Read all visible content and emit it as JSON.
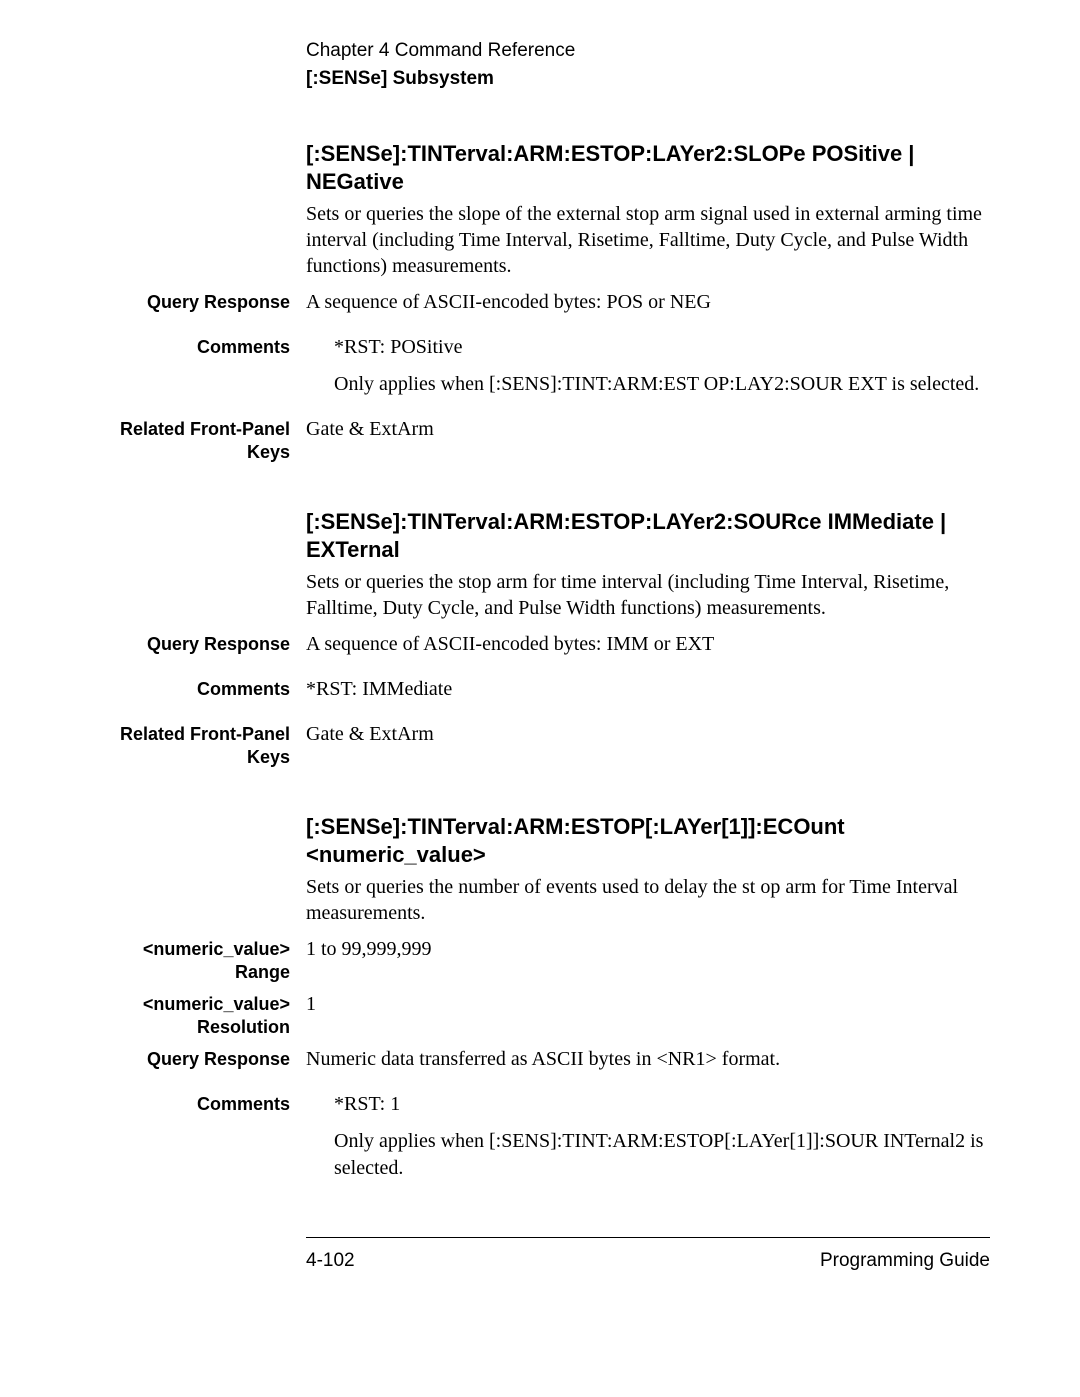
{
  "header": {
    "chapter": "Chapter 4  Command Reference",
    "subsystem": "[:SENSe] Subsystem"
  },
  "sections": [
    {
      "title": "[:SENSe]:TINTerval:ARM:ESTOP:LAYer2:SLOPe  POSitive | NEGative",
      "desc": "Sets or queries the slope of the external stop arm signal used in external arming time interval (including Time Interval, Risetime, Falltime, Duty Cycle, and Pulse Width functions) measurements.",
      "rows": [
        {
          "label": "Query Response",
          "content": [
            {
              "text": "A sequence of ASCII-encoded bytes: POS or NEG",
              "indent": false
            }
          ]
        },
        {
          "label": "Comments",
          "content": [
            {
              "text": "*RST: POSitive",
              "indent": true
            },
            {
              "text": "Only applies when [:SENS]:TINT:ARM:EST OP:LAY2:SOUR EXT is selected.",
              "indent": true
            }
          ]
        },
        {
          "label": "Related Front-Panel Keys",
          "content": [
            {
              "text": "Gate & ExtArm",
              "indent": false
            }
          ]
        }
      ]
    },
    {
      "title": "[:SENSe]:TINTerval:ARM:ESTOP:LAYer2:SOURce  IMMediate | EXTernal",
      "desc": "Sets or queries the stop arm for time interval (including Time Interval, Risetime, Falltime, Duty Cycle, and Pulse Width functions) measurements.",
      "rows": [
        {
          "label": "Query Response",
          "content": [
            {
              "text": "A sequence of ASCII-encoded bytes: IMM or EXT",
              "indent": false
            }
          ]
        },
        {
          "label": "Comments",
          "content": [
            {
              "text": "*RST: IMMediate",
              "indent": false
            }
          ]
        },
        {
          "label": "Related Front-Panel Keys",
          "content": [
            {
              "text": "Gate & ExtArm",
              "indent": false
            }
          ]
        }
      ]
    },
    {
      "title": "[:SENSe]:TINTerval:ARM:ESTOP[:LAYer[1]]:ECOunt <numeric_value>",
      "desc": "Sets or queries the number of events used to delay the st op arm for Time Interval measurements.",
      "rows": [
        {
          "label": "<numeric_value> Range",
          "content": [
            {
              "text": "1  to  99,999,999",
              "indent": false
            }
          ]
        },
        {
          "label": "<numeric_value> Resolution",
          "content": [
            {
              "text": "1",
              "indent": false
            }
          ]
        },
        {
          "label": "Query Response",
          "content": [
            {
              "text": "Numeric data transferred as ASCII bytes in <NR1> format.",
              "indent": false
            }
          ]
        },
        {
          "label": "Comments",
          "content": [
            {
              "text": "*RST: 1",
              "indent": true
            },
            {
              "text": "Only applies when [:SENS]:TINT:ARM:ESTOP[:LAYer[1]]:SOUR INTernal2 is selected.",
              "indent": true
            }
          ]
        }
      ]
    }
  ],
  "footer": {
    "left": "4-102",
    "right": "Programming Guide"
  }
}
